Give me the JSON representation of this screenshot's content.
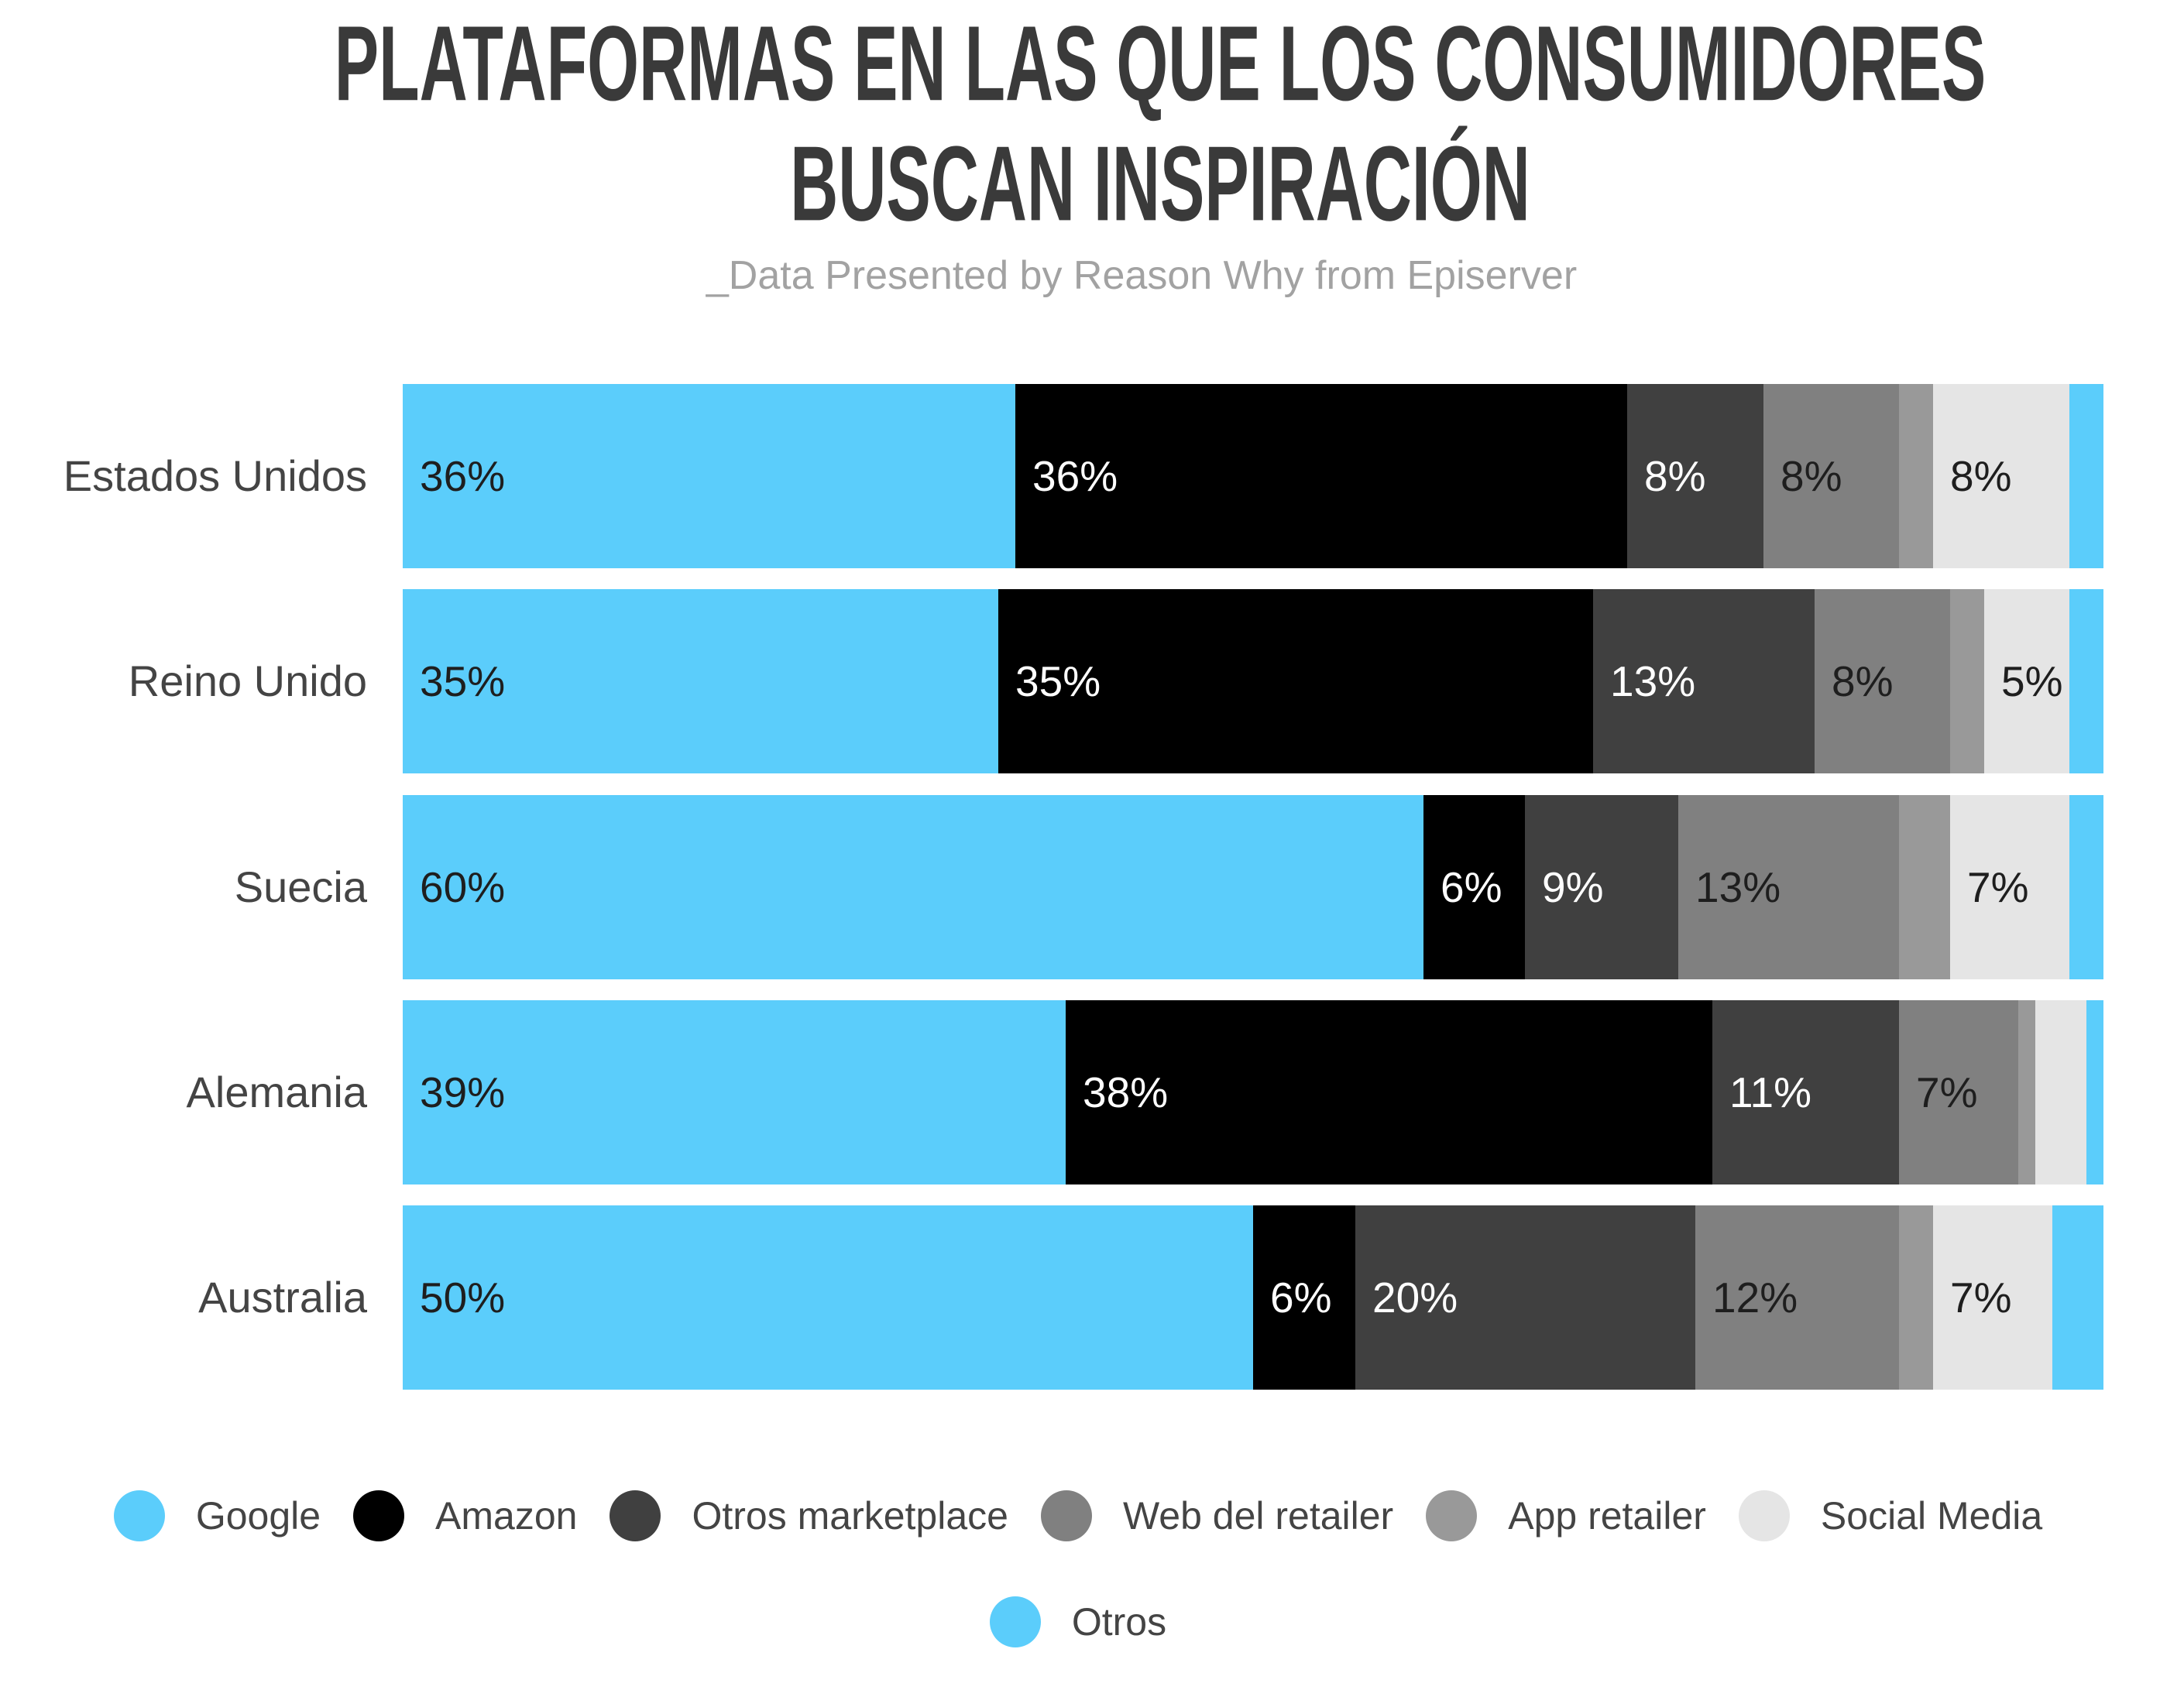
{
  "chart_data": {
    "type": "bar",
    "orientation": "horizontal",
    "stacked": true,
    "title": "PLATAFORMAS EN LAS QUE LOS CONSUMIDORES BUSCAN INSPIRACIÓN",
    "subtitle": "_Data Presented by Reason Why from Episerver",
    "categories": [
      "Estados Unidos",
      "Reino Unido",
      "Suecia",
      "Alemania",
      "Australia"
    ],
    "value_suffix": "%",
    "series": [
      {
        "name": "Google",
        "color": "#5bcdfb",
        "values": [
          36,
          35,
          60,
          39,
          50
        ]
      },
      {
        "name": "Amazon",
        "color": "#000000",
        "values": [
          36,
          35,
          6,
          38,
          6
        ]
      },
      {
        "name": "Otros marketplace",
        "color": "#404040",
        "values": [
          8,
          13,
          9,
          11,
          20
        ]
      },
      {
        "name": "Web del retailer",
        "color": "#808080",
        "values": [
          8,
          8,
          13,
          7,
          12
        ]
      },
      {
        "name": "App retailer",
        "color": "#999999",
        "values": [
          2,
          2,
          3,
          1,
          2
        ]
      },
      {
        "name": "Social Media",
        "color": "#e5e5e5",
        "values": [
          8,
          5,
          7,
          3,
          7
        ]
      },
      {
        "name": "Otros",
        "color": "#5bcdfb",
        "values": [
          2,
          2,
          2,
          1,
          3
        ]
      }
    ],
    "xlim": [
      0,
      100
    ],
    "grid": false,
    "legend": "bottom"
  }
}
